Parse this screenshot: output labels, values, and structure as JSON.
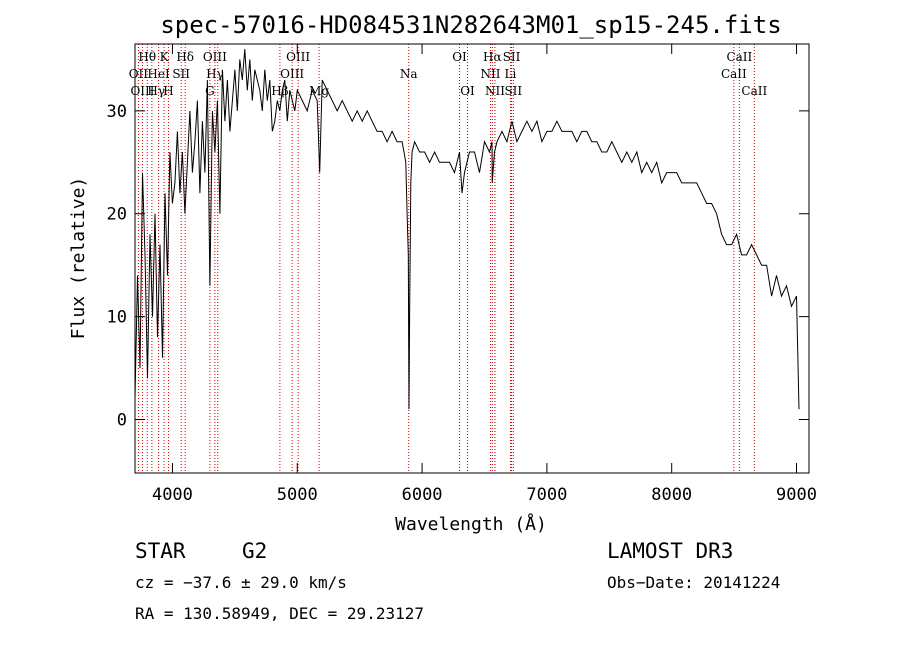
{
  "chart_data": {
    "type": "line",
    "title": "spec-57016-HD084531N282643M01_sp15-245.fits",
    "xlabel": "Wavelength (Å)",
    "ylabel": "Flux (relative)",
    "xlim": [
      3700,
      9100
    ],
    "ylim": [
      -5.2,
      36.5
    ],
    "x_ticks": [
      4000,
      5000,
      6000,
      7000,
      8000,
      9000
    ],
    "y_ticks": [
      0,
      10,
      20,
      30
    ],
    "series": [
      {
        "x": [
          3700,
          3720,
          3740,
          3760,
          3780,
          3800,
          3820,
          3840,
          3860,
          3880,
          3900,
          3920,
          3940,
          3960,
          3980,
          4000,
          4020,
          4040,
          4060,
          4080,
          4100,
          4120,
          4140,
          4160,
          4180,
          4200,
          4220,
          4240,
          4260,
          4280,
          4300,
          4320,
          4340,
          4360,
          4380,
          4400,
          4420,
          4440,
          4460,
          4480,
          4500,
          4520,
          4540,
          4560,
          4580,
          4600,
          4620,
          4640,
          4660,
          4680,
          4700,
          4720,
          4740,
          4760,
          4780,
          4800,
          4820,
          4840,
          4860,
          4880,
          4900,
          4920,
          4940,
          4960,
          4980,
          5000,
          5040,
          5080,
          5120,
          5160,
          5180,
          5200,
          5240,
          5280,
          5320,
          5360,
          5400,
          5440,
          5480,
          5520,
          5560,
          5600,
          5640,
          5680,
          5720,
          5760,
          5800,
          5840,
          5870,
          5880,
          5890,
          5895,
          5900,
          5910,
          5920,
          5940,
          5980,
          6020,
          6060,
          6100,
          6140,
          6180,
          6220,
          6260,
          6300,
          6320,
          6340,
          6380,
          6420,
          6460,
          6500,
          6540,
          6560,
          6562,
          6580,
          6600,
          6640,
          6680,
          6720,
          6760,
          6800,
          6840,
          6880,
          6920,
          6960,
          7000,
          7040,
          7080,
          7120,
          7160,
          7200,
          7240,
          7280,
          7320,
          7360,
          7400,
          7440,
          7480,
          7520,
          7560,
          7600,
          7640,
          7680,
          7720,
          7760,
          7800,
          7840,
          7880,
          7920,
          7960,
          8000,
          8040,
          8080,
          8120,
          8160,
          8200,
          8240,
          8280,
          8320,
          8360,
          8400,
          8440,
          8480,
          8520,
          8560,
          8600,
          8640,
          8680,
          8720,
          8760,
          8800,
          8840,
          8880,
          8920,
          8960,
          9000,
          9020
        ],
        "y": [
          2,
          14,
          5,
          24,
          16,
          4,
          18,
          10,
          20,
          8,
          17,
          6,
          22,
          14,
          26,
          21,
          23,
          28,
          22,
          26,
          20,
          25,
          30,
          24,
          27,
          31,
          22,
          29,
          24,
          33,
          13,
          30,
          26,
          31,
          20,
          34,
          29,
          33,
          28,
          31,
          34,
          30,
          35,
          33,
          36,
          32,
          35,
          31,
          34,
          33,
          32,
          30,
          34,
          31,
          33,
          28,
          29,
          31,
          30,
          32,
          33,
          29,
          32,
          31,
          30,
          32,
          31,
          30,
          32,
          31,
          24,
          33,
          32,
          31,
          30,
          31,
          30,
          29,
          30,
          29,
          30,
          29,
          28,
          28,
          27,
          28,
          27,
          27,
          25,
          20,
          16,
          1,
          10,
          23,
          26,
          27,
          26,
          26,
          25,
          26,
          25,
          25,
          25,
          24,
          26,
          22,
          24,
          26,
          26,
          24,
          27,
          26,
          27,
          23,
          26,
          27,
          28,
          27,
          29,
          27,
          28,
          29,
          28,
          29,
          27,
          28,
          28,
          29,
          28,
          28,
          28,
          27,
          28,
          28,
          27,
          27,
          26,
          26,
          27,
          26,
          25,
          26,
          25,
          26,
          24,
          25,
          24,
          25,
          23,
          24,
          24,
          24,
          23,
          23,
          23,
          23,
          22,
          21,
          21,
          20,
          18,
          17,
          17,
          18,
          16,
          16,
          17,
          16,
          15,
          15,
          12,
          14,
          12,
          13,
          11,
          12,
          1
        ]
      }
    ],
    "spectral_lines": [
      {
        "label": "Hθ",
        "wl": 3798,
        "row": 1
      },
      {
        "label": "K",
        "wl": 3933,
        "row": 1
      },
      {
        "label": "Hδ",
        "wl": 4102,
        "row": 1
      },
      {
        "label": "OII",
        "wl": 3727,
        "row": 2
      },
      {
        "label": "HeI",
        "wl": 3889,
        "row": 2
      },
      {
        "label": "SII",
        "wl": 4070,
        "row": 2
      },
      {
        "label": "OIII",
        "wl": 3760,
        "row": 3
      },
      {
        "label": "Hγ",
        "wl": 3870,
        "row": 3
      },
      {
        "label": "H",
        "wl": 3968,
        "row": 3
      },
      {
        "label": "OIII",
        "wl": 4340,
        "row": 1
      },
      {
        "label": "Hγ",
        "wl": 4341,
        "row": 2
      },
      {
        "label": "G",
        "wl": 4300,
        "row": 3
      },
      {
        "label": "OIII",
        "wl": 5007,
        "row": 1
      },
      {
        "label": "OIII",
        "wl": 4959,
        "row": 2
      },
      {
        "label": "Hβ",
        "wl": 4861,
        "row": 3
      },
      {
        "label": "Mg",
        "wl": 5175,
        "row": 3
      },
      {
        "label": "Na",
        "wl": 5893,
        "row": 2
      },
      {
        "label": "OI",
        "wl": 6300,
        "row": 1
      },
      {
        "label": "OI",
        "wl": 6364,
        "row": 3
      },
      {
        "label": "Hα",
        "wl": 6563,
        "row": 1
      },
      {
        "label": "SII",
        "wl": 6717,
        "row": 1
      },
      {
        "label": "NII",
        "wl": 6548,
        "row": 2
      },
      {
        "label": "Li",
        "wl": 6708,
        "row": 2
      },
      {
        "label": "NII",
        "wl": 6584,
        "row": 3
      },
      {
        "label": "SII",
        "wl": 6731,
        "row": 3
      },
      {
        "label": "CaII",
        "wl": 8542,
        "row": 1
      },
      {
        "label": "CaII",
        "wl": 8498,
        "row": 2
      },
      {
        "label": "CaII",
        "wl": 8662,
        "row": 3
      }
    ],
    "line_marker_wavelengths": [
      3727,
      3760,
      3798,
      3835,
      3889,
      3933,
      3968,
      4070,
      4102,
      4300,
      4340,
      4363,
      4861,
      4959,
      5007,
      5175,
      5893,
      6300,
      6364,
      6548,
      6563,
      6584,
      6708,
      6717,
      6731,
      8498,
      8542,
      8662
    ],
    "line_marker_color": "#cc0000"
  },
  "info": {
    "object_type": "STAR",
    "subclass": "G2",
    "survey": "LAMOST DR3",
    "cz": "cz = −37.6 ± 29.0 km/s",
    "obs_date": "Obs−Date: 20141224",
    "radec": "RA = 130.58949, DEC =  29.23127"
  }
}
